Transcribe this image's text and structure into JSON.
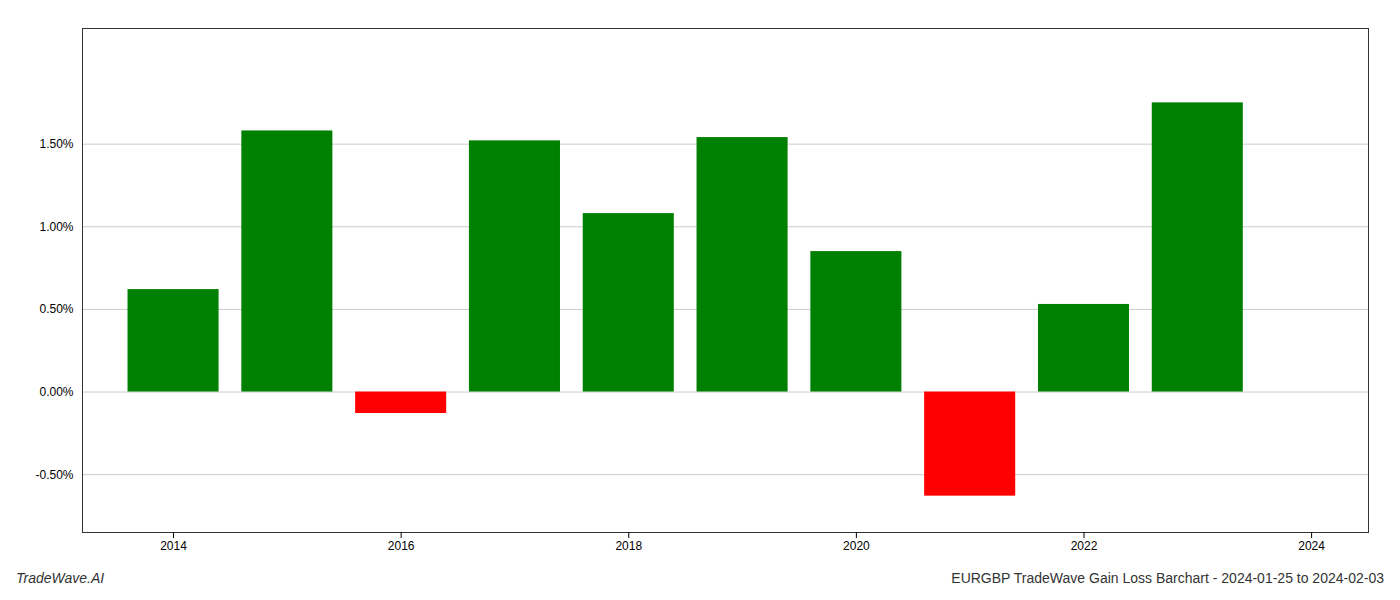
{
  "chart_data": {
    "type": "bar",
    "title": "EURGBP TradeWave Gain Loss Barchart - 2024-01-25 to 2024-02-03",
    "annotations": [
      "TradeWave.AI"
    ],
    "x": [
      2014,
      2015,
      2016,
      2017,
      2018,
      2019,
      2020,
      2021,
      2022,
      2023
    ],
    "values": [
      0.0062,
      0.0158,
      -0.0013,
      0.0152,
      0.0108,
      0.0154,
      0.0085,
      -0.0063,
      0.0053,
      0.0175
    ],
    "colors": [
      "#008000",
      "#008000",
      "#ff0000",
      "#008000",
      "#008000",
      "#008000",
      "#008000",
      "#ff0000",
      "#008000",
      "#008000"
    ],
    "xlim": [
      2013.2,
      2024.5
    ],
    "xticks": [
      2014,
      2016,
      2018,
      2020,
      2022,
      2024
    ],
    "ylim": [
      -0.0085,
      0.022
    ],
    "yticks": [
      {
        "value": -0.005,
        "label": "-0.50%"
      },
      {
        "value": 0.0,
        "label": "0.00%"
      },
      {
        "value": 0.005,
        "label": "0.50%"
      },
      {
        "value": 0.01,
        "label": "1.00%"
      },
      {
        "value": 0.015,
        "label": "1.50%"
      }
    ],
    "grid": true
  }
}
